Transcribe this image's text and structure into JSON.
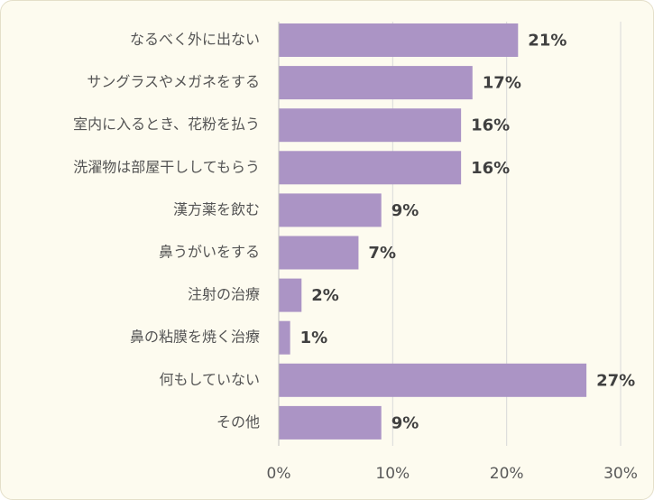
{
  "chart_data": {
    "type": "bar",
    "orientation": "horizontal",
    "categories": [
      "なるべく外に出ない",
      "サングラスやメガネをする",
      "室内に入るとき、花粉を払う",
      "洗濯物は部屋干ししてもらう",
      "漢方薬を飲む",
      "鼻うがいをする",
      "注射の治療",
      "鼻の粘膜を焼く治療",
      "何もしていない",
      "その他"
    ],
    "values": [
      21,
      17,
      16,
      16,
      9,
      7,
      2,
      1,
      27,
      9
    ],
    "value_labels": [
      "21%",
      "17%",
      "16%",
      "16%",
      "9%",
      "7%",
      "2%",
      "1%",
      "27%",
      "9%"
    ],
    "xlim": [
      0,
      30
    ],
    "ticks": [
      0,
      10,
      20,
      30
    ],
    "tick_labels": [
      "0%",
      "10%",
      "20%",
      "30%"
    ],
    "grid": true,
    "bar_color": "#ab94c5",
    "grid_color": "#d9d9d9",
    "background_color": "#fdfbef"
  }
}
